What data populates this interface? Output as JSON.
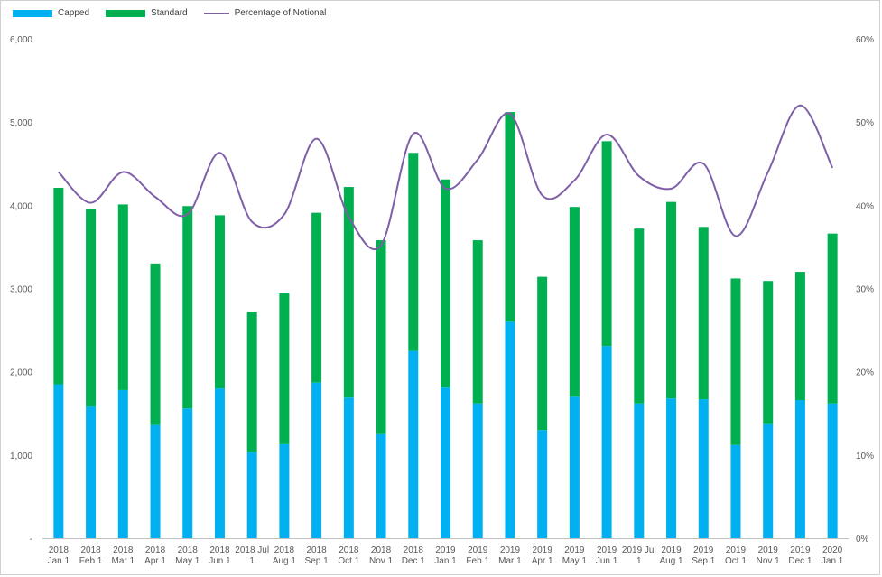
{
  "chart_data": {
    "type": "bar",
    "stacked": true,
    "categories": [
      "2018 Jan 1",
      "2018 Feb 1",
      "2018 Mar 1",
      "2018 Apr 1",
      "2018 May 1",
      "2018 Jun 1",
      "2018 Jul 1",
      "2018 Aug 1",
      "2018 Sep 1",
      "2018 Oct 1",
      "2018 Nov 1",
      "2018 Dec 1",
      "2019 Jan 1",
      "2019 Feb 1",
      "2019 Mar 1",
      "2019 Apr 1",
      "2019 May 1",
      "2019 Jun 1",
      "2019 Jul 1",
      "2019 Aug 1",
      "2019 Sep 1",
      "2019 Oct 1",
      "2019 Nov 1",
      "2019 Dec 1",
      "2020 Jan 1"
    ],
    "category_lines": [
      [
        "2018",
        "Jan 1"
      ],
      [
        "2018",
        "Feb 1"
      ],
      [
        "2018",
        "Mar 1"
      ],
      [
        "2018",
        "Apr 1"
      ],
      [
        "2018",
        "May 1"
      ],
      [
        "2018",
        "Jun 1"
      ],
      [
        "2018 Jul",
        "1"
      ],
      [
        "2018",
        "Aug 1"
      ],
      [
        "2018",
        "Sep 1"
      ],
      [
        "2018",
        "Oct 1"
      ],
      [
        "2018",
        "Nov 1"
      ],
      [
        "2018",
        "Dec 1"
      ],
      [
        "2019",
        "Jan 1"
      ],
      [
        "2019",
        "Feb 1"
      ],
      [
        "2019",
        "Mar 1"
      ],
      [
        "2019",
        "Apr 1"
      ],
      [
        "2019",
        "May 1"
      ],
      [
        "2019",
        "Jun 1"
      ],
      [
        "2019 Jul",
        "1"
      ],
      [
        "2019",
        "Aug 1"
      ],
      [
        "2019",
        "Sep 1"
      ],
      [
        "2019",
        "Oct 1"
      ],
      [
        "2019",
        "Nov 1"
      ],
      [
        "2019",
        "Dec 1"
      ],
      [
        "2020",
        "Jan 1"
      ]
    ],
    "series": [
      {
        "name": "Capped",
        "color": "#00b0f0",
        "values": [
          1850,
          1580,
          1780,
          1360,
          1560,
          1800,
          1030,
          1130,
          1870,
          1690,
          1250,
          2250,
          1810,
          1620,
          2600,
          1300,
          1700,
          2310,
          1620,
          1680,
          1670,
          1120,
          1370,
          1660,
          1620
        ]
      },
      {
        "name": "Standard",
        "color": "#00b050",
        "values": [
          2360,
          2370,
          2230,
          1940,
          2430,
          2080,
          1690,
          1810,
          2040,
          2530,
          2330,
          2380,
          2500,
          1960,
          2520,
          1840,
          2280,
          2460,
          2100,
          2360,
          2070,
          2000,
          1720,
          1540,
          2040
        ]
      }
    ],
    "line_series": {
      "name": "Percentage of Notional",
      "color": "#7e5fa8",
      "axis": "right",
      "values": [
        44,
        40.3,
        44,
        41,
        38.9,
        46.3,
        38,
        38.9,
        48,
        38.6,
        35.2,
        48.6,
        42,
        45.5,
        51,
        41.2,
        43,
        48.5,
        43.5,
        42,
        45,
        36.3,
        44,
        52,
        44.5
      ]
    },
    "y_left": {
      "min": 0,
      "max": 6000,
      "ticks": [
        "-",
        "1,000",
        "2,000",
        "3,000",
        "4,000",
        "5,000",
        "6,000"
      ]
    },
    "y_right": {
      "min": 0,
      "max": 60,
      "ticks": [
        "0%",
        "10%",
        "20%",
        "30%",
        "40%",
        "50%",
        "60%"
      ]
    },
    "legend": [
      "Capped",
      "Standard",
      "Percentage of Notional"
    ],
    "legend_position": "top-left",
    "grid": false
  }
}
